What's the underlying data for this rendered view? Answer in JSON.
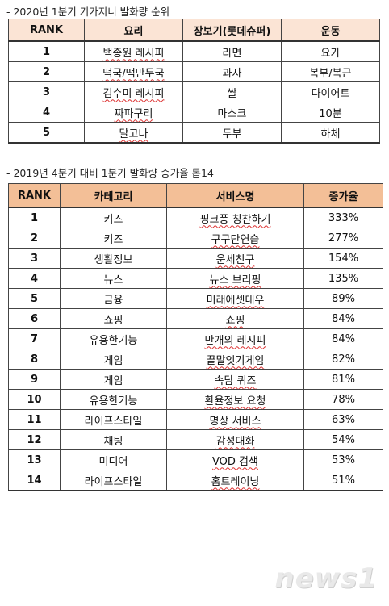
{
  "section1": {
    "caption": "- 2020년 1분기 기가지니 발화량 순위",
    "headers": [
      "RANK",
      "요리",
      "장보기(롯데슈퍼)",
      "운동"
    ],
    "rows": [
      [
        "1",
        "백종원 레시피",
        "라면",
        "요가"
      ],
      [
        "2",
        "떡국/떡만두국",
        "과자",
        "복부/복근"
      ],
      [
        "3",
        "김수미 레시피",
        "쌀",
        "다이어트"
      ],
      [
        "4",
        "짜파구리",
        "마스크",
        "10분"
      ],
      [
        "5",
        "달고나",
        "두부",
        "하체"
      ]
    ]
  },
  "section2": {
    "caption": "- 2019년 4분기 대비 1분기 발화량 증가율 톱14",
    "headers": [
      "RANK",
      "카테고리",
      "서비스명",
      "증가율"
    ],
    "rows": [
      [
        "1",
        "키즈",
        "핑크퐁 칭찬하기",
        "333%"
      ],
      [
        "2",
        "키즈",
        "구구단연습",
        "277%"
      ],
      [
        "3",
        "생활정보",
        "운세친구",
        "154%"
      ],
      [
        "4",
        "뉴스",
        "뉴스 브리핑",
        "135%"
      ],
      [
        "5",
        "금융",
        "미래에셋대우",
        "89%"
      ],
      [
        "6",
        "쇼핑",
        "쇼핑",
        "84%"
      ],
      [
        "7",
        "유용한기능",
        "만개의 레시피",
        "84%"
      ],
      [
        "8",
        "게임",
        "끝말잇기게임",
        "82%"
      ],
      [
        "9",
        "게임",
        "속담 퀴즈",
        "81%"
      ],
      [
        "10",
        "유용한기능",
        "환율정보 요청",
        "78%"
      ],
      [
        "11",
        "라이프스타일",
        "명상 서비스",
        "63%"
      ],
      [
        "12",
        "채팅",
        "감성대화",
        "54%"
      ],
      [
        "13",
        "미디어",
        "VOD 검색",
        "53%"
      ],
      [
        "14",
        "라이프스타일",
        "홈트레이닝",
        "51%"
      ]
    ]
  },
  "logo": {
    "text": "news1"
  }
}
